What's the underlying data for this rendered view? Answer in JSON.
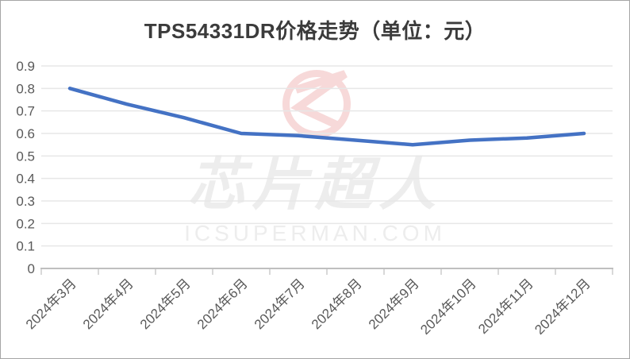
{
  "frame": {
    "border_color": "#a6a6a6",
    "background": "#ffffff"
  },
  "chart_data": {
    "type": "line",
    "title": "TPS54331DR价格走势（单位：元）",
    "title_color": "#3b3b3b",
    "categories": [
      "2024年3月",
      "2024年4月",
      "2024年5月",
      "2024年6月",
      "2024年7月",
      "2024年8月",
      "2024年9月",
      "2024年10月",
      "2024年11月",
      "2024年12月"
    ],
    "values": [
      0.8,
      0.73,
      0.67,
      0.6,
      0.59,
      0.57,
      0.55,
      0.57,
      0.58,
      0.6
    ],
    "xlabel": "",
    "ylabel": "",
    "ylim": [
      0,
      0.9
    ],
    "ytick_labels": [
      "0",
      "0.1",
      "0.2",
      "0.3",
      "0.4",
      "0.5",
      "0.6",
      "0.7",
      "0.8",
      "0.9"
    ],
    "grid": "horizontal",
    "legend": "none",
    "line_color": "#4472c4",
    "gridline_color": "#e7e7e7",
    "axis_color": "#bfbfbf",
    "tick_label_color": "#595959"
  },
  "watermark": {
    "logo_icon": "ic-superman-logo",
    "logo_color": "#f7d9d9",
    "cn_text": "芯片超人",
    "site_text": "ICSUPERMAN.COM",
    "text_color": "#ededed"
  }
}
